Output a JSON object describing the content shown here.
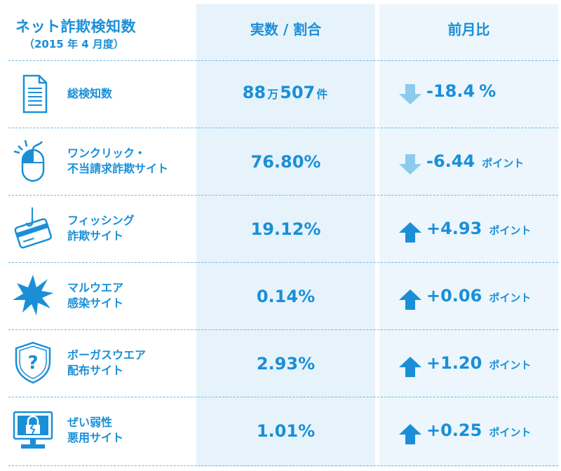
{
  "header": {
    "title_line1": "ネット詐欺検知数",
    "title_line2": "（2015 年 4 月度）",
    "col_value": "実数 / 割合",
    "col_change": "前月比"
  },
  "rows": [
    {
      "label1": "総検知数",
      "label2": "",
      "value_num1": "88",
      "value_unit1": "万",
      "value_num2": "507",
      "value_unit2": "件",
      "change": "-18.4",
      "change_unit": "%",
      "direction": "down",
      "icon": "document-icon"
    },
    {
      "label1": "ワンクリック・",
      "label2": "不当請求詐欺サイト",
      "value": "76.80%",
      "change": "-6.44",
      "change_unit": "ポイント",
      "direction": "down",
      "icon": "mouse-click-icon"
    },
    {
      "label1": "フィッシング",
      "label2": "詐欺サイト",
      "value": "19.12%",
      "change": "+4.93",
      "change_unit": "ポイント",
      "direction": "up",
      "icon": "credit-card-hook-icon"
    },
    {
      "label1": "マルウエア",
      "label2": "感染サイト",
      "value": "0.14%",
      "change": "+0.06",
      "change_unit": "ポイント",
      "direction": "up",
      "icon": "malware-burst-icon"
    },
    {
      "label1": "ボーガスウエア",
      "label2": "配布サイト",
      "value": "2.93%",
      "change": "+1.20",
      "change_unit": "ポイント",
      "direction": "up",
      "icon": "shield-question-icon"
    },
    {
      "label1": "ぜい弱性",
      "label2": "悪用サイト",
      "value": "1.01%",
      "change": "+0.25",
      "change_unit": "ポイント",
      "direction": "up",
      "icon": "monitor-broken-lock-icon"
    }
  ],
  "colors": {
    "accent": "#1a8fd8",
    "arrow_up": "#1a8fd8",
    "arrow_down": "#8ccbee",
    "column_bg": "#e7f3fb"
  },
  "chart_data": {
    "type": "table",
    "columns": [
      "ネット詐欺検知数",
      "実数 / 割合",
      "前月比"
    ],
    "rows": [
      [
        "総検知数",
        "88万507件",
        "-18.4%"
      ],
      [
        "ワンクリック・不当請求詐欺サイト",
        "76.80%",
        "-6.44ポイント"
      ],
      [
        "フィッシング詐欺サイト",
        "19.12%",
        "+4.93ポイント"
      ],
      [
        "マルウエア感染サイト",
        "0.14%",
        "+0.06ポイント"
      ],
      [
        "ボーガスウエア配布サイト",
        "2.93%",
        "+1.20ポイント"
      ],
      [
        "ぜい弱性悪用サイト",
        "1.01%",
        "+0.25ポイント"
      ]
    ]
  }
}
